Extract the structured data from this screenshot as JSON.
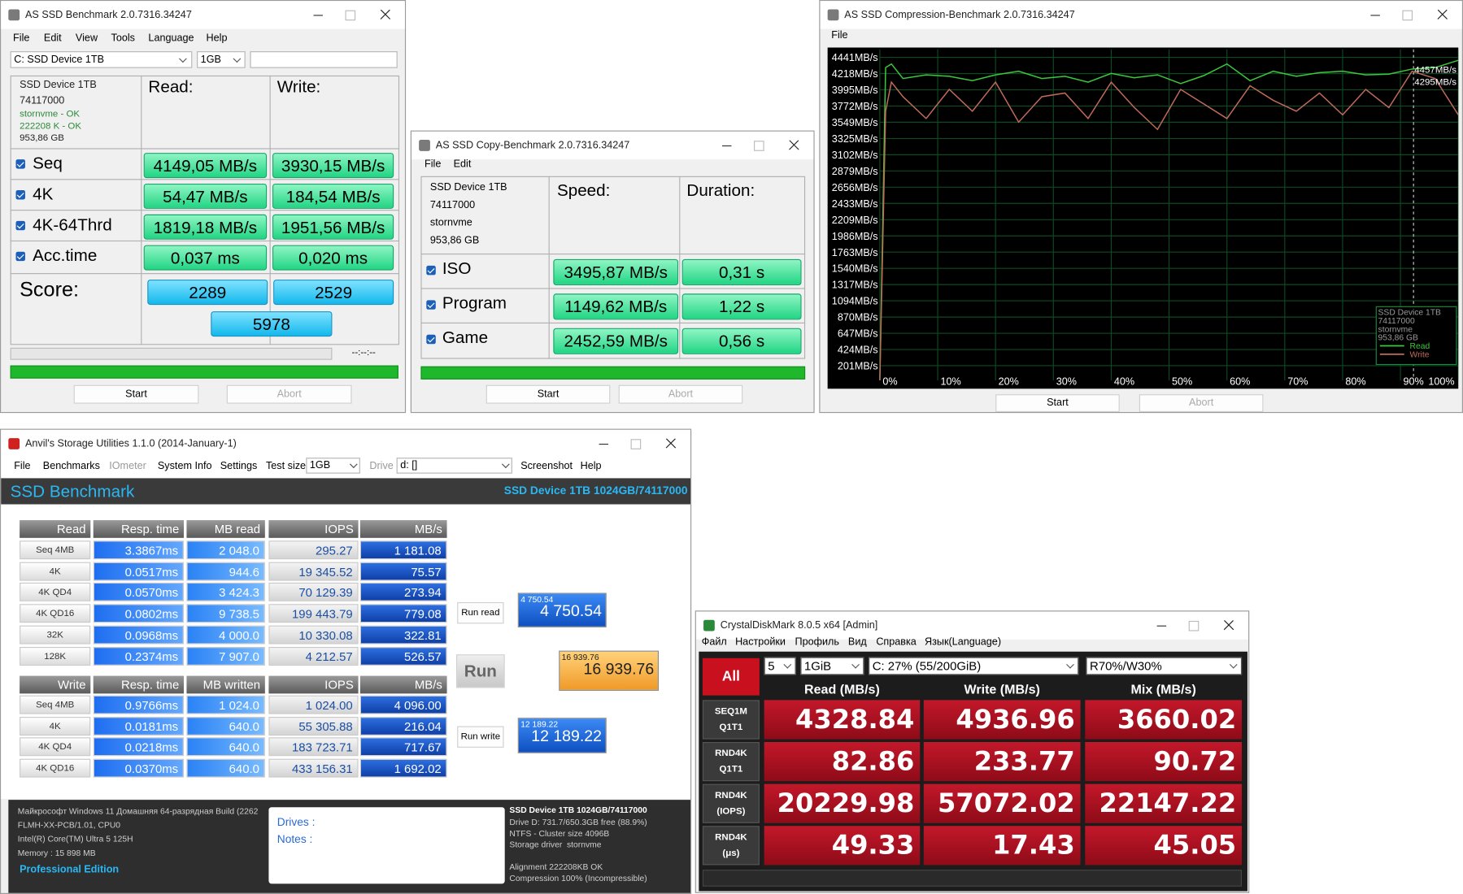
{
  "as_ssd": {
    "title": "AS SSD Benchmark 2.0.7316.34247",
    "menu": [
      "File",
      "Edit",
      "View",
      "Tools",
      "Language",
      "Help"
    ],
    "drive": "C: SSD Device 1TB",
    "size": "1GB",
    "device": [
      "SSD Device 1TB",
      "74117000",
      "stornvme - OK",
      "222208 K - OK",
      "953,86 GB"
    ],
    "read_header": "Read:",
    "write_header": "Write:",
    "rows": [
      {
        "label": "Seq",
        "read": "4149,05 MB/s",
        "write": "3930,15 MB/s"
      },
      {
        "label": "4K",
        "read": "54,47 MB/s",
        "write": "184,54 MB/s"
      },
      {
        "label": "4K-64Thrd",
        "read": "1819,18 MB/s",
        "write": "1951,56 MB/s"
      },
      {
        "label": "Acc.time",
        "read": "0,037 ms",
        "write": "0,020 ms"
      }
    ],
    "score_label": "Score:",
    "score_read": "2289",
    "score_write": "2529",
    "score_total": "5978",
    "time": "--:--:--",
    "start": "Start",
    "abort": "Abort"
  },
  "copy_benchmark": {
    "title": "AS SSD Copy-Benchmark 2.0.7316.34247",
    "menu": [
      "File",
      "Edit"
    ],
    "device": [
      "SSD Device 1TB",
      "74117000",
      "stornvme",
      "953,86 GB"
    ],
    "speed_header": "Speed:",
    "duration_header": "Duration:",
    "rows": [
      {
        "label": "ISO",
        "speed": "3495,87 MB/s",
        "duration": "0,31 s"
      },
      {
        "label": "Program",
        "speed": "1149,62 MB/s",
        "duration": "1,22 s"
      },
      {
        "label": "Game",
        "speed": "2452,59 MB/s",
        "duration": "0,56 s"
      }
    ],
    "start": "Start",
    "abort": "Abort"
  },
  "compression": {
    "title": "AS SSD Compression-Benchmark 2.0.7316.34247",
    "menu": [
      "File"
    ],
    "start": "Start",
    "abort": "Abort"
  },
  "chart_data": {
    "type": "line",
    "x": [
      0,
      1,
      2,
      4,
      8,
      12,
      16,
      20,
      24,
      28,
      32,
      36,
      40,
      44,
      48,
      52,
      56,
      60,
      64,
      68,
      72,
      76,
      80,
      84,
      88,
      92,
      96,
      100
    ],
    "series": [
      {
        "name": "Read",
        "color": "#3cc83c",
        "values": [
          0,
          4300,
          4350,
          4150,
          4200,
          4180,
          4120,
          4200,
          4250,
          4150,
          4180,
          4100,
          4220,
          4160,
          4200,
          4080,
          4190,
          4350,
          4120,
          4250,
          4180,
          4230,
          4250,
          4200,
          4210,
          4280,
          4300,
          4400
        ]
      },
      {
        "name": "Write",
        "color": "#c06a5a",
        "values": [
          0,
          3700,
          4100,
          3900,
          3600,
          4000,
          3700,
          4100,
          3550,
          3900,
          3950,
          3600,
          4100,
          3750,
          3450,
          4000,
          3800,
          3600,
          4050,
          3850,
          3700,
          3950,
          3650,
          4000,
          3750,
          4250,
          4150,
          3650
        ]
      }
    ],
    "xlim": [
      0,
      100
    ],
    "xticks": [
      {
        "value": 0,
        "label": "0%"
      },
      {
        "value": 10,
        "label": "10%"
      },
      {
        "value": 20,
        "label": "20%"
      },
      {
        "value": 30,
        "label": "30%"
      },
      {
        "value": 40,
        "label": "40%"
      },
      {
        "value": 50,
        "label": "50%"
      },
      {
        "value": 60,
        "label": "60%"
      },
      {
        "value": 70,
        "label": "70%"
      },
      {
        "value": 80,
        "label": "80%"
      },
      {
        "value": 90,
        "label": "90%"
      },
      {
        "value": 100,
        "label": "100%"
      }
    ],
    "ylim": [
      0,
      4550
    ],
    "yticks": [
      {
        "value": 4441,
        "label": "4441MB/s"
      },
      {
        "value": 4218,
        "label": "4218MB/s"
      },
      {
        "value": 3995,
        "label": "3995MB/s"
      },
      {
        "value": 3772,
        "label": "3772MB/s"
      },
      {
        "value": 3549,
        "label": "3549MB/s"
      },
      {
        "value": 3325,
        "label": "3325MB/s"
      },
      {
        "value": 3102,
        "label": "3102MB/s"
      },
      {
        "value": 2879,
        "label": "2879MB/s"
      },
      {
        "value": 2656,
        "label": "2656MB/s"
      },
      {
        "value": 2433,
        "label": "2433MB/s"
      },
      {
        "value": 2209,
        "label": "2209MB/s"
      },
      {
        "value": 1986,
        "label": "1986MB/s"
      },
      {
        "value": 1763,
        "label": "1763MB/s"
      },
      {
        "value": 1540,
        "label": "1540MB/s"
      },
      {
        "value": 1317,
        "label": "1317MB/s"
      },
      {
        "value": 1094,
        "label": "1094MB/s"
      },
      {
        "value": 870,
        "label": "870MB/s"
      },
      {
        "value": 647,
        "label": "647MB/s"
      },
      {
        "value": 424,
        "label": "424MB/s"
      },
      {
        "value": 201,
        "label": "201MB/s"
      }
    ],
    "annotations": [
      "4457MB/s",
      "4295MB/s"
    ],
    "legend_title": [
      "SSD Device 1TB",
      "74117000",
      "stornvme",
      "953,86 GB"
    ],
    "grid": true,
    "legend": "lower right"
  },
  "anvil": {
    "title": "Anvil's Storage Utilities 1.1.0 (2014-January-1)",
    "toolbar": [
      "File",
      "Benchmarks",
      "IOmeter",
      "System Info",
      "Settings",
      "Test size"
    ],
    "test_size": "1GB",
    "drive_label": "Drive",
    "drive": "d: []",
    "toolbar_right": [
      "Screenshot",
      "Help"
    ],
    "header": "SSD Benchmark",
    "device": "SSD Device 1TB 1024GB/74117000",
    "read_table": {
      "header": [
        "Read",
        "Resp. time",
        "MB read",
        "IOPS",
        "MB/s"
      ],
      "rows": [
        [
          "Seq 4MB",
          "3.3867ms",
          "2 048.0",
          "295.27",
          "1 181.08"
        ],
        [
          "4K",
          "0.0517ms",
          "944.6",
          "19 345.52",
          "75.57"
        ],
        [
          "4K QD4",
          "0.0570ms",
          "3 424.3",
          "70 129.39",
          "273.94"
        ],
        [
          "4K QD16",
          "0.0802ms",
          "9 738.5",
          "199 443.79",
          "779.08"
        ],
        [
          "32K",
          "0.0968ms",
          "4 000.0",
          "10 330.08",
          "322.81"
        ],
        [
          "128K",
          "0.2374ms",
          "7 907.0",
          "4 212.57",
          "526.57"
        ]
      ]
    },
    "write_table": {
      "header": [
        "Write",
        "Resp. time",
        "MB written",
        "IOPS",
        "MB/s"
      ],
      "rows": [
        [
          "Seq 4MB",
          "0.9766ms",
          "1 024.0",
          "1 024.00",
          "4 096.00"
        ],
        [
          "4K",
          "0.0181ms",
          "640.0",
          "55 305.88",
          "216.04"
        ],
        [
          "4K QD4",
          "0.0218ms",
          "640.0",
          "183 723.71",
          "717.67"
        ],
        [
          "4K QD16",
          "0.0370ms",
          "640.0",
          "433 156.31",
          "1 692.02"
        ]
      ]
    },
    "run_read": "Run read",
    "run": "Run",
    "run_write": "Run write",
    "read_score": {
      "small": "4 750.54",
      "big": "4 750.54"
    },
    "total_score": {
      "small": "16 939.76",
      "big": "16 939.76"
    },
    "write_score": {
      "small": "12 189.22",
      "big": "12 189.22"
    },
    "system_info": [
      "Майкрософт Windows 11 Домашняя 64-разрядная Build (2262",
      "FLMH-XX-PCB/1.01, CPU0",
      "Intel(R) Core(TM) Ultra 5 125H",
      "Memory : 15 898 MB"
    ],
    "edition": "Professional Edition",
    "drives_label": "Drives :",
    "notes_label": "Notes :",
    "drive_info": [
      "SSD Device 1TB 1024GB/74117000",
      "Drive D: 731.7/650.3GB free (88.9%)",
      "NTFS - Cluster size 4096B",
      "Storage driver  stornvme",
      "Alignment 222208KB OK",
      "Compression 100% (Incompressible)"
    ]
  },
  "crystaldiskmark": {
    "title": "CrystalDiskMark 8.0.5 x64 [Admin]",
    "menu": [
      "Файл",
      "Настройки",
      "Профиль",
      "Вид",
      "Справка",
      "Язык(Language)"
    ],
    "all": "All",
    "count": "5",
    "size": "1GiB",
    "drive": "C: 27% (55/200GiB)",
    "mix": "R70%/W30%",
    "headers": [
      "Read (MB/s)",
      "Write (MB/s)",
      "Mix (MB/s)"
    ],
    "rows": [
      {
        "label": [
          "SEQ1M",
          "Q1T1"
        ],
        "values": [
          "4328.84",
          "4936.96",
          "3660.02"
        ]
      },
      {
        "label": [
          "RND4K",
          "Q1T1"
        ],
        "values": [
          "82.86",
          "233.77",
          "90.72"
        ]
      },
      {
        "label": [
          "RND4K",
          "(IOPS)"
        ],
        "values": [
          "20229.98",
          "57072.02",
          "22147.22"
        ]
      },
      {
        "label": [
          "RND4K",
          "(μs)"
        ],
        "values": [
          "49.33",
          "17.43",
          "45.05"
        ]
      }
    ]
  }
}
